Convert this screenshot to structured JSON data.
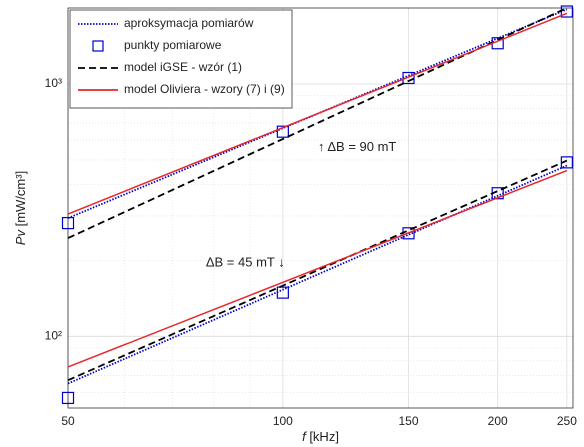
{
  "chart_data": {
    "type": "line",
    "log_x": true,
    "log_y": true,
    "grid": true,
    "xlabel_var": "f",
    "xlabel_unit": "[kHz]",
    "ylabel_var": "Pv",
    "ylabel_unit": "[mW/cm³]",
    "xlim": [
      50,
      255
    ],
    "ylim": [
      52,
      2000
    ],
    "xticks": [
      50,
      100,
      150,
      200,
      250
    ],
    "yticks": [
      {
        "value": 100,
        "label": "10²"
      },
      {
        "value": 1000,
        "label": "10³"
      }
    ],
    "xminor": [
      60,
      70,
      80,
      90
    ],
    "yminor": [
      60,
      70,
      80,
      90,
      200,
      300,
      400,
      500,
      600,
      700,
      800,
      900
    ],
    "legend": "upper left",
    "series": [
      {
        "name": "aproksymacja pomiarów",
        "color": "#0000cc",
        "style": "dotted",
        "x": [
          50,
          250
        ],
        "values": [
          [
            294,
            1975
          ],
          [
            65,
            475
          ]
        ]
      },
      {
        "name": "punkty pomiarowe",
        "color": "#0000cc",
        "style": "square",
        "x": [
          50,
          100,
          150,
          200,
          250
        ],
        "values": [
          [
            281,
            647,
            1056,
            1450,
            1937
          ],
          [
            57,
            149,
            256,
            369,
            489
          ]
        ]
      },
      {
        "name": "model iGSE - wzór (1)",
        "color": "#000000",
        "style": "dashed",
        "x": [
          50,
          250
        ],
        "values": [
          [
            245,
            2000
          ],
          [
            67,
            497
          ]
        ]
      },
      {
        "name": "model Oliviera - wzory (7) i (9)",
        "color": "#e8262b",
        "style": "solid",
        "x": [
          50,
          250
        ],
        "values": [
          [
            305,
            1905
          ],
          [
            75.6,
            454
          ]
        ]
      }
    ],
    "annotations": [
      {
        "text": "↑ ΔB = 90 mT",
        "x": 112,
        "y": 560
      },
      {
        "text": "ΔB = 45 mT ↓",
        "x": 78,
        "y": 195
      }
    ]
  }
}
